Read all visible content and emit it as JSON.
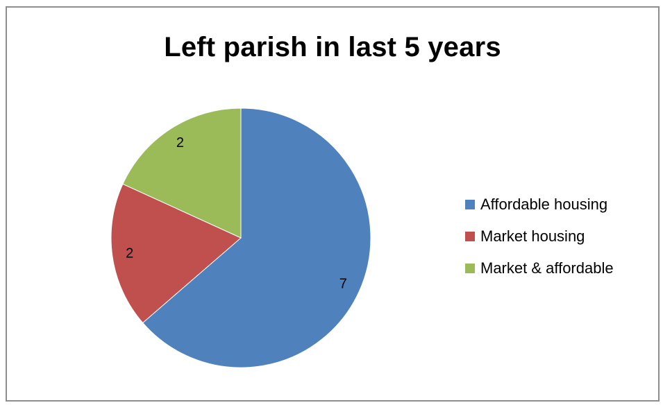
{
  "chart_data": {
    "type": "pie",
    "title": "Left parish in last 5 years",
    "categories": [
      "Affordable housing",
      "Market housing",
      "Market & affordable"
    ],
    "values": [
      7,
      2,
      2
    ],
    "data_labels": [
      "7",
      "2",
      "2"
    ],
    "colors": [
      "#4f81bd",
      "#c0504d",
      "#9bbb59"
    ],
    "legend_position": "right"
  }
}
